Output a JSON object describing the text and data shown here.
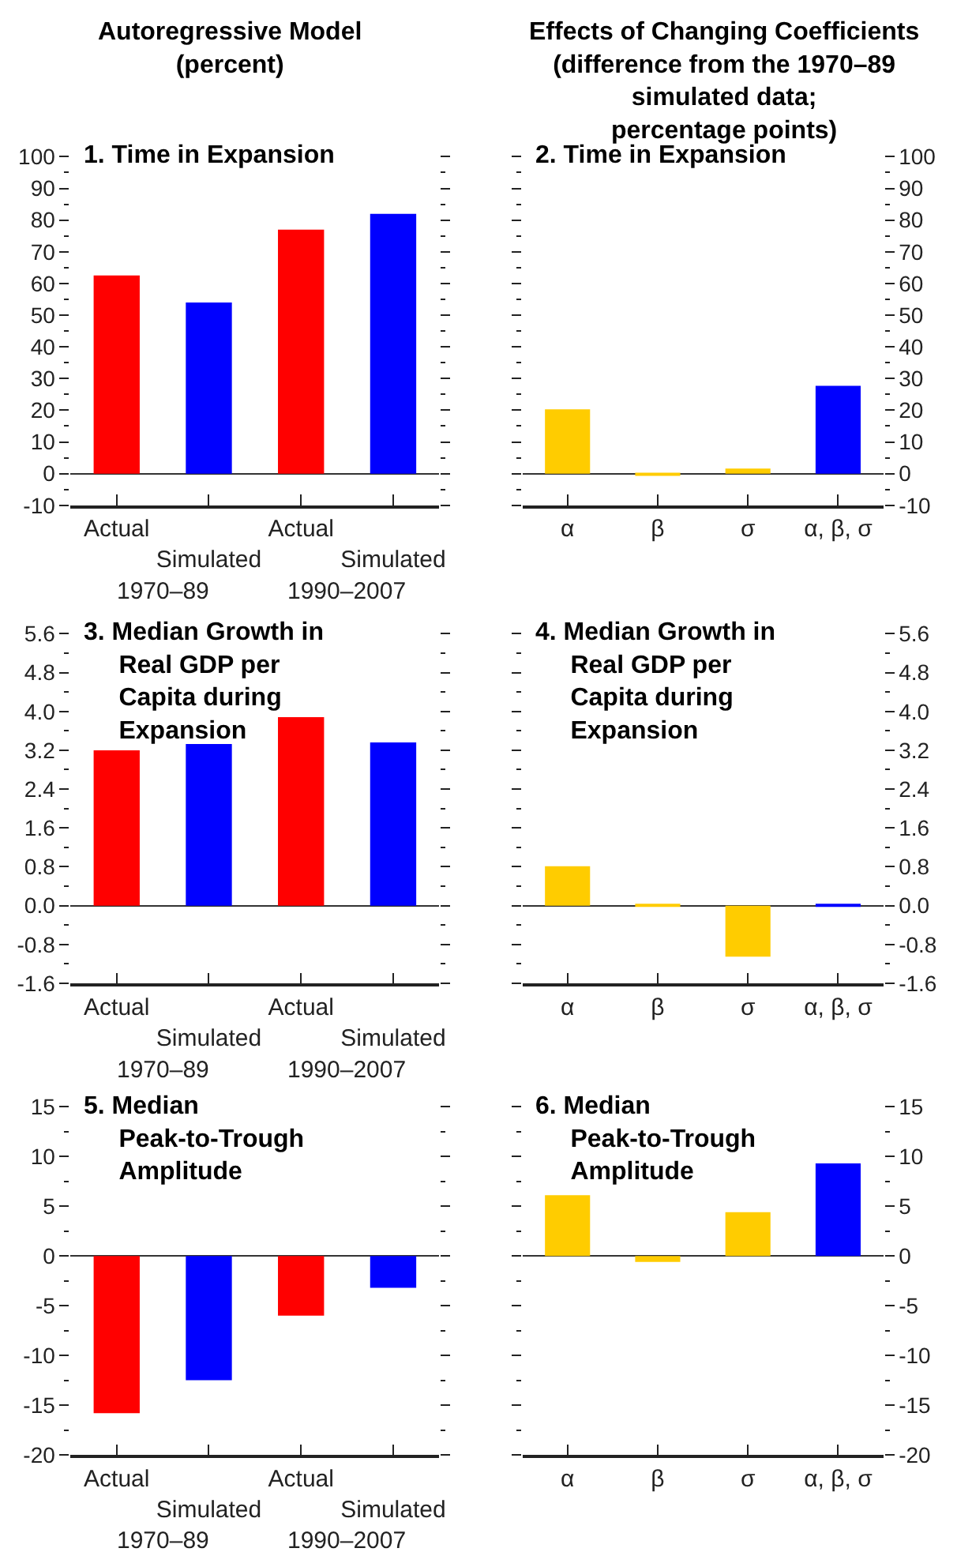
{
  "chart_data": [
    {
      "type": "bar",
      "title": "Autoregressive Model (percent)",
      "subtitle": "1. Time in Expansion",
      "categories": [
        "Actual",
        "Simulated",
        "Actual",
        "Simulated"
      ],
      "values": [
        62.5,
        54,
        77,
        82
      ],
      "colors": [
        "#ff0000",
        "#0000ff",
        "#ff0000",
        "#0000ff"
      ],
      "ylim": [
        -10,
        100
      ],
      "yticks": [
        -10,
        {
          "value": -5,
          "label": null
        },
        0,
        {
          "value": 5,
          "label": null
        },
        10,
        {
          "value": 15,
          "label": null
        },
        20,
        {
          "value": 25,
          "label": null
        },
        30,
        {
          "value": 35,
          "label": null
        },
        40,
        {
          "value": 45,
          "label": null
        },
        50,
        {
          "value": 55,
          "label": null
        },
        60,
        {
          "value": 65,
          "label": null
        },
        70,
        {
          "value": 75,
          "label": null
        },
        80,
        {
          "value": 85,
          "label": null
        },
        90,
        {
          "value": 95,
          "label": null
        },
        100
      ],
      "annotations": [
        "1970–89",
        "1990–2007"
      ]
    },
    {
      "type": "bar",
      "title": "Effects of Changing Coefficients (difference from the 1970–89 simulated data; percentage points)",
      "subtitle": "2. Time in Expansion",
      "categories": [
        "α",
        "β",
        "σ",
        "α, β, σ"
      ],
      "values": [
        20.3,
        -0.7,
        1.6,
        27.7
      ],
      "colors": [
        "#ffcc00",
        "#ffcc00",
        "#ffcc00",
        "#0000ff"
      ],
      "ylim": [
        -10,
        100
      ],
      "yticks": [
        -10,
        {
          "value": -5,
          "label": null
        },
        0,
        {
          "value": 5,
          "label": null
        },
        10,
        {
          "value": 15,
          "label": null
        },
        20,
        {
          "value": 25,
          "label": null
        },
        30,
        {
          "value": 35,
          "label": null
        },
        40,
        {
          "value": 45,
          "label": null
        },
        50,
        {
          "value": 55,
          "label": null
        },
        60,
        {
          "value": 65,
          "label": null
        },
        70,
        {
          "value": 75,
          "label": null
        },
        80,
        {
          "value": 85,
          "label": null
        },
        90,
        {
          "value": 95,
          "label": null
        },
        100
      ]
    },
    {
      "type": "bar",
      "title": "3. Median Growth in Real GDP per Capita during Expansion",
      "categories": [
        "Actual",
        "Simulated",
        "Actual",
        "Simulated"
      ],
      "values": [
        3.2,
        3.33,
        3.88,
        3.36
      ],
      "colors": [
        "#ff0000",
        "#0000ff",
        "#ff0000",
        "#0000ff"
      ],
      "ylim": [
        -1.6,
        5.6
      ],
      "yticks": [
        -1.6,
        {
          "value": -1.2,
          "label": null
        },
        -0.8,
        {
          "value": -0.4,
          "label": null
        },
        {
          "value": 0,
          "label": "0.0"
        },
        {
          "value": 0.4,
          "label": null
        },
        0.8,
        {
          "value": 1.2,
          "label": null
        },
        1.6,
        {
          "value": 2.0,
          "label": null
        },
        2.4,
        {
          "value": 2.8,
          "label": null
        },
        3.2,
        {
          "value": 3.6,
          "label": null
        },
        {
          "value": 4,
          "label": "4.0"
        },
        {
          "value": 4.4,
          "label": null
        },
        4.8,
        {
          "value": 5.2,
          "label": null
        },
        5.6
      ],
      "annotations": [
        "1970–89",
        "1990–2007"
      ]
    },
    {
      "type": "bar",
      "title": "4. Median Growth in Real GDP per Capita during Expansion",
      "categories": [
        "α",
        "β",
        "σ",
        "α, β, σ"
      ],
      "values": [
        0.81,
        0.02,
        -1.05,
        0.04
      ],
      "colors": [
        "#ffcc00",
        "#ffcc00",
        "#ffcc00",
        "#0000ff"
      ],
      "ylim": [
        -1.6,
        5.6
      ],
      "yticks": [
        -1.6,
        {
          "value": -1.2,
          "label": null
        },
        -0.8,
        {
          "value": -0.4,
          "label": null
        },
        {
          "value": 0,
          "label": "0.0"
        },
        {
          "value": 0.4,
          "label": null
        },
        0.8,
        {
          "value": 1.2,
          "label": null
        },
        1.6,
        {
          "value": 2.0,
          "label": null
        },
        2.4,
        {
          "value": 2.8,
          "label": null
        },
        3.2,
        {
          "value": 3.6,
          "label": null
        },
        {
          "value": 4,
          "label": "4.0"
        },
        {
          "value": 4.4,
          "label": null
        },
        4.8,
        {
          "value": 5.2,
          "label": null
        },
        5.6
      ]
    },
    {
      "type": "bar",
      "title": "5. Median Peak-to-Trough Amplitude",
      "categories": [
        "Actual",
        "Simulated",
        "Actual",
        "Simulated"
      ],
      "values": [
        -15.8,
        -12.5,
        -6.0,
        -3.2
      ],
      "colors": [
        "#ff0000",
        "#0000ff",
        "#ff0000",
        "#0000ff"
      ],
      "ylim": [
        -20,
        15
      ],
      "yticks": [
        -20,
        {
          "value": -17.5,
          "label": null
        },
        -15,
        {
          "value": -12.5,
          "label": null
        },
        -10,
        {
          "value": -7.5,
          "label": null
        },
        -5,
        {
          "value": -2.5,
          "label": null
        },
        0,
        {
          "value": 2.5,
          "label": null
        },
        5,
        {
          "value": 7.5,
          "label": null
        },
        10,
        {
          "value": 12.5,
          "label": null
        },
        15
      ],
      "annotations": [
        "1970–89",
        "1990–2007"
      ]
    },
    {
      "type": "bar",
      "title": "6. Median Peak-to-Trough Amplitude",
      "categories": [
        "α",
        "β",
        "σ",
        "α, β, σ"
      ],
      "values": [
        6.1,
        -0.6,
        4.4,
        9.3
      ],
      "colors": [
        "#ffcc00",
        "#ffcc00",
        "#ffcc00",
        "#0000ff"
      ],
      "ylim": [
        -20,
        15
      ],
      "yticks": [
        -20,
        {
          "value": -17.5,
          "label": null
        },
        -15,
        {
          "value": -12.5,
          "label": null
        },
        -10,
        {
          "value": -7.5,
          "label": null
        },
        -5,
        {
          "value": -2.5,
          "label": null
        },
        0,
        {
          "value": 2.5,
          "label": null
        },
        5,
        {
          "value": 7.5,
          "label": null
        },
        10,
        {
          "value": 12.5,
          "label": null
        },
        15
      ]
    }
  ]
}
